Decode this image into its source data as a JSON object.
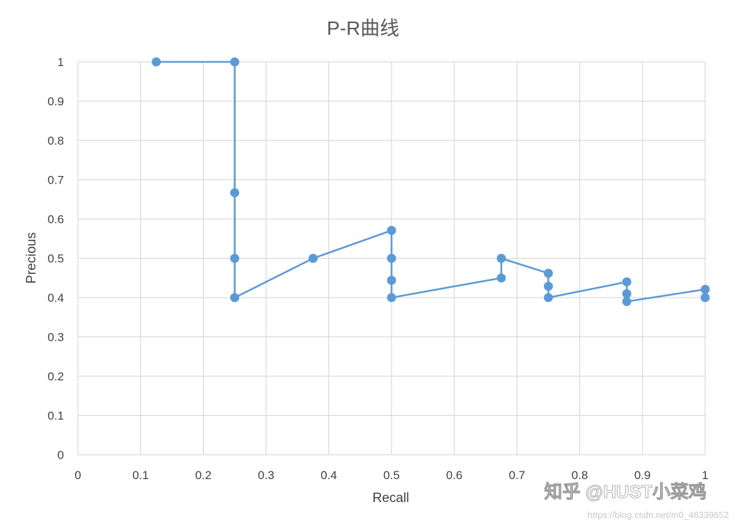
{
  "chart_data": {
    "type": "line",
    "title": "P-R曲线",
    "xlabel": "Recall",
    "ylabel": "Precious",
    "xlim": [
      0,
      1
    ],
    "ylim": [
      0,
      1
    ],
    "x_ticks": [
      "0",
      "0.1",
      "0.2",
      "0.3",
      "0.4",
      "0.5",
      "0.6",
      "0.7",
      "0.8",
      "0.9",
      "1"
    ],
    "y_ticks": [
      "0",
      "0.1",
      "0.2",
      "0.3",
      "0.4",
      "0.5",
      "0.6",
      "0.7",
      "0.8",
      "0.9",
      "1"
    ],
    "grid": true,
    "legend": "none",
    "color": "#5b9bd5",
    "series": [
      {
        "x": [
          0.125,
          0.25,
          0.25,
          0.25,
          0.25,
          0.375,
          0.5,
          0.5,
          0.5,
          0.5,
          0.675,
          0.675,
          0.75,
          0.75,
          0.75,
          0.875,
          0.875,
          0.875,
          1.0,
          1.0
        ],
        "y": [
          1.0,
          1.0,
          0.667,
          0.5,
          0.4,
          0.5,
          0.571,
          0.5,
          0.444,
          0.4,
          0.45,
          0.5,
          0.462,
          0.429,
          0.4,
          0.44,
          0.41,
          0.39,
          0.421,
          0.4
        ]
      }
    ]
  },
  "watermark": {
    "text": "知乎 @HUST小菜鸡",
    "url": "https://blog.csdn.net/m0_46339652"
  }
}
